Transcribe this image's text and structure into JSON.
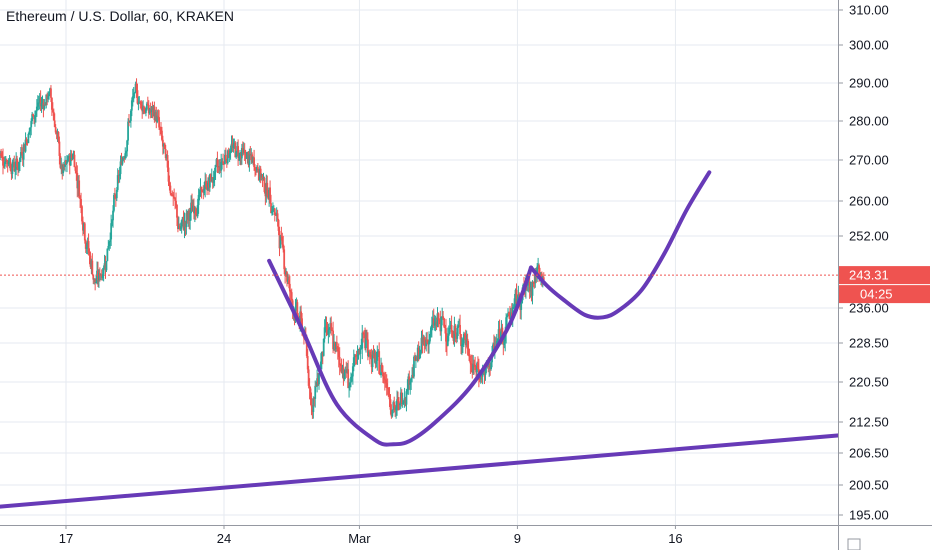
{
  "chart_data": {
    "type": "candlestick",
    "title": "Ethereum / U.S. Dollar, 60, KRAKEN",
    "y_ticks": [
      310.0,
      300.0,
      290.0,
      280.0,
      270.0,
      260.0,
      252.0,
      236.0,
      228.5,
      220.5,
      212.5,
      206.5,
      200.5,
      195.0
    ],
    "y_tick_labels": [
      "310.00",
      "300.00",
      "290.00",
      "280.00",
      "270.00",
      "260.00",
      "252.00",
      "236.00",
      "228.50",
      "220.50",
      "212.50",
      "206.50",
      "200.50",
      "195.00"
    ],
    "x_tick_labels": [
      "17",
      "24",
      "Mar",
      "9",
      "16"
    ],
    "x_tick_days": [
      17,
      24,
      30,
      37,
      44
    ],
    "x_start_day": 14.0,
    "x_end_day": 51.5,
    "last_price": 243.31,
    "last_price_label": "243.31",
    "countdown_label": "04:25",
    "colors": {
      "up": "#26a69a",
      "down": "#ef5350",
      "drawing": "#673ab7",
      "price_badge": "#ef5350",
      "grid": "#e6eaf0"
    },
    "candle_anchors": [
      [
        14.0,
        272
      ],
      [
        14.8,
        268
      ],
      [
        15.6,
        283
      ],
      [
        16.3,
        287
      ],
      [
        16.8,
        266
      ],
      [
        17.3,
        272
      ],
      [
        17.9,
        250
      ],
      [
        18.3,
        241
      ],
      [
        18.7,
        246
      ],
      [
        19.3,
        265
      ],
      [
        20.0,
        287
      ],
      [
        20.6,
        283
      ],
      [
        21.0,
        281
      ],
      [
        21.6,
        264
      ],
      [
        22.0,
        253
      ],
      [
        22.6,
        258
      ],
      [
        23.0,
        262
      ],
      [
        23.5,
        266
      ],
      [
        24.2,
        273
      ],
      [
        24.7,
        272
      ],
      [
        25.5,
        268
      ],
      [
        26.2,
        258
      ],
      [
        26.6,
        248
      ],
      [
        27.0,
        237
      ],
      [
        27.5,
        231
      ],
      [
        27.9,
        215
      ],
      [
        28.5,
        232
      ],
      [
        29.0,
        226
      ],
      [
        29.6,
        220
      ],
      [
        30.1,
        230
      ],
      [
        30.7,
        224
      ],
      [
        31.1,
        222
      ],
      [
        31.6,
        214
      ],
      [
        32.2,
        222
      ],
      [
        32.8,
        228
      ],
      [
        33.4,
        233
      ],
      [
        34.0,
        231
      ],
      [
        34.6,
        230
      ],
      [
        35.0,
        223
      ],
      [
        35.6,
        222
      ],
      [
        36.0,
        228
      ],
      [
        36.5,
        233
      ],
      [
        37.0,
        238
      ],
      [
        37.5,
        241
      ],
      [
        37.9,
        244
      ],
      [
        38.2,
        243
      ]
    ],
    "trendline_points": [
      [
        14.0,
        196.5
      ],
      [
        51.5,
        210.0
      ]
    ],
    "cup_curve": [
      [
        26.0,
        246.5
      ],
      [
        27.5,
        231
      ],
      [
        29.0,
        216
      ],
      [
        30.7,
        209
      ],
      [
        31.5,
        208.2
      ],
      [
        32.3,
        209
      ],
      [
        33.5,
        213
      ],
      [
        35.0,
        220
      ],
      [
        36.5,
        231
      ],
      [
        37.2,
        239
      ],
      [
        37.6,
        245
      ]
    ],
    "projection_curve": [
      [
        37.6,
        245
      ],
      [
        38.3,
        241
      ],
      [
        39.0,
        238
      ],
      [
        40.0,
        234.5
      ],
      [
        40.8,
        234
      ],
      [
        41.5,
        235.5
      ],
      [
        42.5,
        240
      ],
      [
        43.5,
        248
      ],
      [
        44.5,
        258
      ],
      [
        45.5,
        267
      ]
    ]
  }
}
